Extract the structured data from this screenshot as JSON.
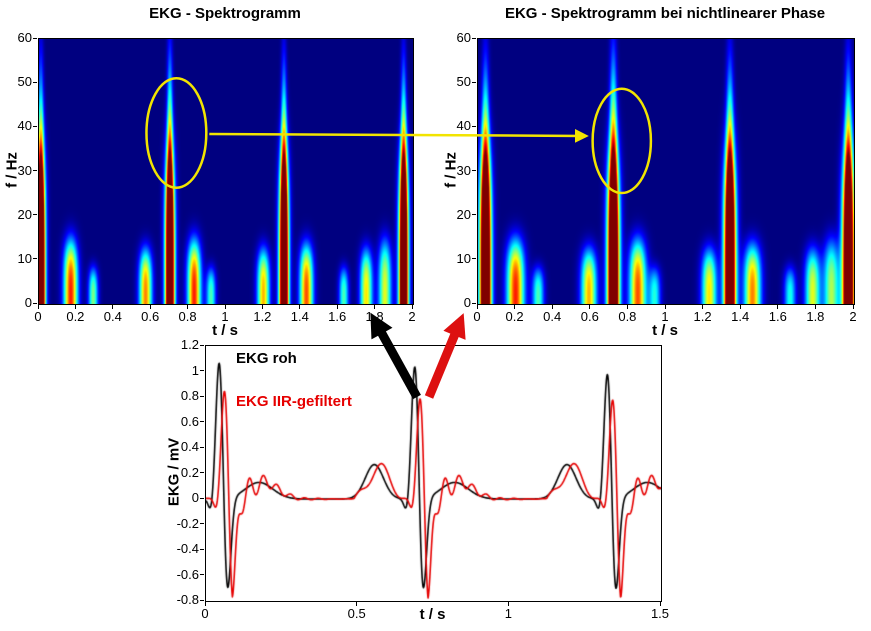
{
  "figure": {
    "background": "#ffffff"
  },
  "chart_data": [
    {
      "id": "spectrogram-left",
      "type": "heatmap",
      "title": "EKG - Spektrogramm",
      "xlabel": "t / s",
      "ylabel": "f / Hz",
      "xlim": [
        0,
        2
      ],
      "ylim": [
        0,
        60
      ],
      "x_tick_values": [
        0,
        0.2,
        0.4,
        0.6,
        0.8,
        1,
        1.2,
        1.4,
        1.6,
        1.8,
        2
      ],
      "x_tick_labels": [
        "0",
        "0.2",
        "0.4",
        "0.6",
        "0.8",
        "1",
        "1.2",
        "1.4",
        "1.6",
        "1.8",
        "2"
      ],
      "y_tick_values": [
        0,
        10,
        20,
        30,
        40,
        50,
        60
      ],
      "y_tick_labels": [
        "0",
        "10",
        "20",
        "30",
        "40",
        "50",
        "60"
      ],
      "colormap": "jet",
      "beat_times_s": [
        0.01,
        0.7,
        1.31,
        1.95
      ],
      "energy_blobs_t_sigma_fmax_amp": [
        [
          0.01,
          0.018,
          34,
          1.15
        ],
        [
          0.01,
          0.011,
          50,
          0.7
        ],
        [
          0.17,
          0.026,
          14,
          0.85
        ],
        [
          0.29,
          0.018,
          8,
          0.5
        ],
        [
          0.57,
          0.024,
          12,
          0.75
        ],
        [
          0.7,
          0.019,
          34,
          1.15
        ],
        [
          0.7,
          0.011,
          52,
          0.75
        ],
        [
          0.83,
          0.025,
          14,
          0.85
        ],
        [
          0.92,
          0.018,
          8,
          0.45
        ],
        [
          1.2,
          0.023,
          12,
          0.7
        ],
        [
          1.31,
          0.019,
          34,
          1.15
        ],
        [
          1.31,
          0.011,
          50,
          0.72
        ],
        [
          1.43,
          0.025,
          13,
          0.8
        ],
        [
          1.63,
          0.018,
          8,
          0.45
        ],
        [
          1.75,
          0.023,
          12,
          0.65
        ],
        [
          1.85,
          0.024,
          14,
          0.6
        ],
        [
          1.95,
          0.019,
          34,
          1.15
        ],
        [
          1.95,
          0.011,
          50,
          0.72
        ]
      ]
    },
    {
      "id": "spectrogram-right",
      "type": "heatmap",
      "title": "EKG - Spektrogramm bei nichtlinearer Phase",
      "xlabel": "t / s",
      "ylabel": "f / Hz",
      "xlim": [
        0,
        2
      ],
      "ylim": [
        0,
        60
      ],
      "x_tick_values": [
        0,
        0.2,
        0.4,
        0.6,
        0.8,
        1,
        1.2,
        1.4,
        1.6,
        1.8,
        2
      ],
      "x_tick_labels": [
        "0",
        "0.2",
        "0.4",
        "0.6",
        "0.8",
        "1",
        "1.2",
        "1.4",
        "1.6",
        "1.8",
        "2"
      ],
      "y_tick_values": [
        0,
        10,
        20,
        30,
        40,
        50,
        60
      ],
      "y_tick_labels": [
        "0",
        "10",
        "20",
        "30",
        "40",
        "50",
        "60"
      ],
      "colormap": "jet",
      "beat_times_s": [
        0.04,
        0.72,
        1.34,
        1.97
      ],
      "energy_blobs_t_sigma_fmax_amp": [
        [
          0.04,
          0.023,
          34,
          1.15
        ],
        [
          0.04,
          0.014,
          50,
          0.75
        ],
        [
          0.2,
          0.032,
          14,
          0.85
        ],
        [
          0.32,
          0.022,
          8,
          0.45
        ],
        [
          0.59,
          0.029,
          12,
          0.7
        ],
        [
          0.72,
          0.024,
          34,
          1.15
        ],
        [
          0.72,
          0.014,
          52,
          0.8
        ],
        [
          0.85,
          0.031,
          14,
          0.8
        ],
        [
          0.94,
          0.022,
          8,
          0.4
        ],
        [
          1.23,
          0.028,
          12,
          0.65
        ],
        [
          1.34,
          0.024,
          34,
          1.15
        ],
        [
          1.34,
          0.014,
          50,
          0.75
        ],
        [
          1.46,
          0.031,
          13,
          0.75
        ],
        [
          1.66,
          0.022,
          8,
          0.4
        ],
        [
          1.78,
          0.028,
          12,
          0.6
        ],
        [
          1.88,
          0.029,
          14,
          0.55
        ],
        [
          1.97,
          0.024,
          34,
          1.15
        ],
        [
          1.97,
          0.014,
          50,
          0.72
        ]
      ]
    },
    {
      "id": "ecg",
      "type": "line",
      "title": "",
      "xlabel": "t / s",
      "ylabel": "EKG / mV",
      "xlim": [
        0,
        1.5
      ],
      "ylim": [
        -0.8,
        1.2
      ],
      "x_tick_values": [
        0,
        0.5,
        1,
        1.5
      ],
      "x_tick_labels": [
        "0",
        "0.5",
        "1",
        "1.5"
      ],
      "y_tick_values": [
        -0.8,
        -0.6,
        -0.4,
        -0.2,
        0,
        0.2,
        0.4,
        0.6,
        0.8,
        1,
        1.2
      ],
      "y_tick_labels": [
        "-0.8",
        "-0.6",
        "-0.4",
        "-0.2",
        "0",
        "0.2",
        "0.4",
        "0.6",
        "0.8",
        "1",
        "1.2"
      ],
      "series": [
        {
          "name": "EKG roh",
          "color": "#000000",
          "role": "raw"
        },
        {
          "name": "EKG IIR-gefiltert",
          "color": "#e60000",
          "role": "filtered"
        }
      ],
      "beats": [
        {
          "t": 0.045,
          "r_raw": 1.16,
          "r_filt": 0.95
        },
        {
          "t": 0.69,
          "r_raw": 1.13,
          "r_filt": 0.89
        },
        {
          "t": 1.325,
          "r_raw": 1.07,
          "r_filt": 0.88
        }
      ],
      "shape": {
        "p_amp": 0.27,
        "p_dt": -0.135,
        "p_sigma": 0.03,
        "q_amp": -0.12,
        "q_dt": -0.027,
        "q_sigma": 0.009,
        "r_sigma": 0.012,
        "s_amp": -0.82,
        "s_dt": 0.024,
        "s_sigma": 0.012,
        "t_amp": 0.13,
        "t_dt": 0.13,
        "t_sigma": 0.045
      },
      "filter_effect": {
        "delay": 0.018,
        "s_scale": 1.1,
        "ring_amp": 0.2,
        "ring_freq": 22,
        "ring_decay": 13,
        "pre_ripple": 0.05
      }
    }
  ],
  "annotations": {
    "highlight_color": "#f2e400",
    "ellipse_left": {
      "t": 0.74,
      "f": 38.5,
      "rt": 0.16,
      "rf": 12.4
    },
    "ellipse_right": {
      "t": 0.77,
      "f": 36.7,
      "rt": 0.155,
      "rf": 11.8
    },
    "raw_arrow_color": "#000000",
    "filtered_arrow_color": "#dd1010"
  }
}
